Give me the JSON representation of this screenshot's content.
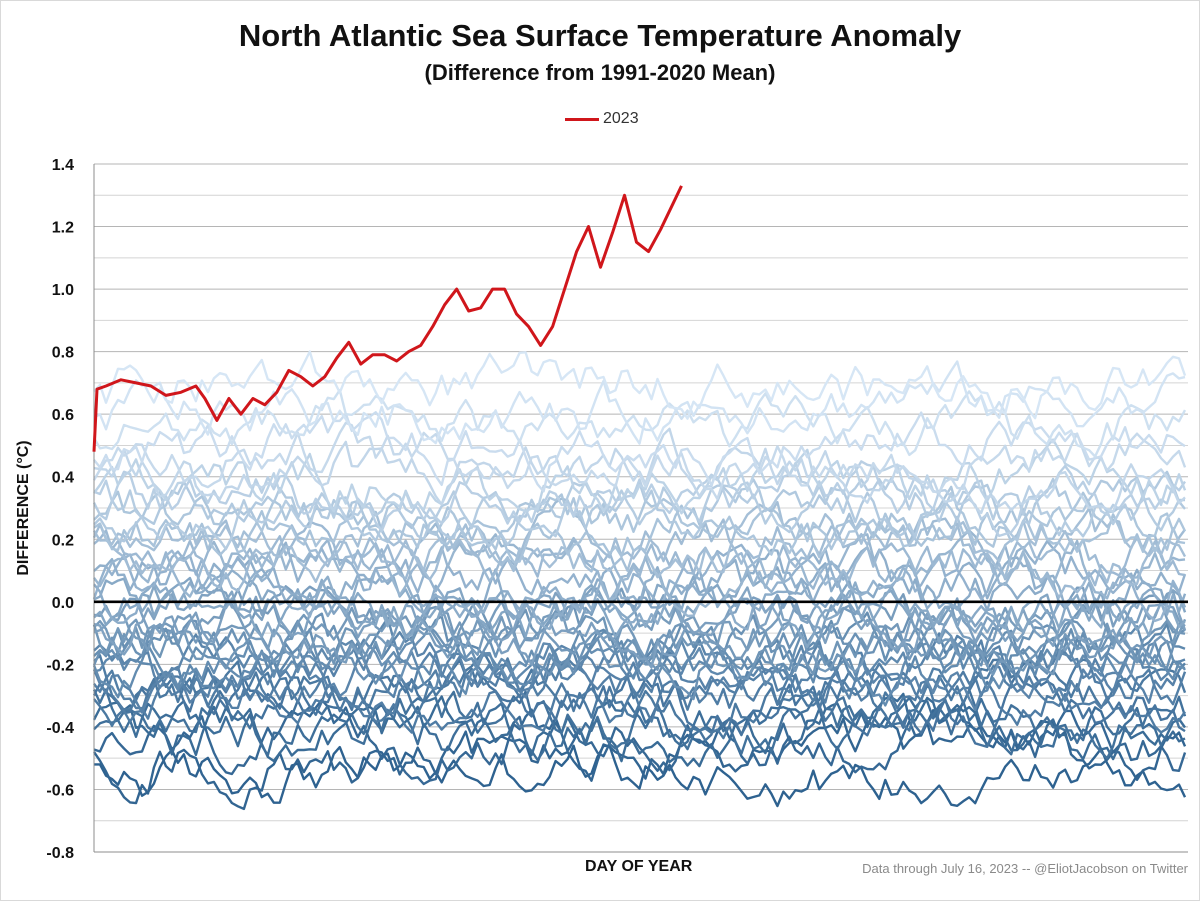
{
  "chart_data": {
    "type": "line",
    "title": "North Atlantic Sea Surface Temperature Anomaly",
    "subtitle": "(Difference from 1991-2020 Mean)",
    "xlabel": "DAY OF YEAR",
    "ylabel": "DIFFERENCE (°C)",
    "ylim": [
      -0.8,
      1.4
    ],
    "yticks": [
      "1.4",
      "1.2",
      "1.0",
      "0.8",
      "0.6",
      "0.4",
      "0.2",
      "0.0",
      "-0.2",
      "-0.4",
      "-0.6",
      "-0.8"
    ],
    "ytick_values": [
      1.4,
      1.2,
      1.0,
      0.8,
      0.6,
      0.4,
      0.2,
      0.0,
      -0.2,
      -0.4,
      -0.6,
      -0.8
    ],
    "xlim": [
      1,
      366
    ],
    "grid": true,
    "zero_line": true,
    "legend": [
      {
        "name": "2023",
        "color": "#d0161b"
      }
    ],
    "legend_position": "top-center",
    "credit": "Data through July 16, 2023 -- @EliotJacobson on Twitter",
    "highlight_series": {
      "name": "2023",
      "color": "#d0161b",
      "days": [
        1,
        2,
        5,
        10,
        15,
        20,
        25,
        30,
        35,
        38,
        42,
        46,
        50,
        54,
        58,
        62,
        66,
        70,
        74,
        78,
        82,
        86,
        90,
        94,
        98,
        102,
        106,
        110,
        114,
        118,
        122,
        126,
        130,
        134,
        138,
        142,
        146,
        150,
        154,
        158,
        162,
        166,
        170,
        174,
        178,
        182,
        186,
        190,
        194,
        197
      ],
      "values": [
        0.48,
        0.68,
        0.69,
        0.71,
        0.7,
        0.69,
        0.66,
        0.67,
        0.69,
        0.65,
        0.58,
        0.65,
        0.6,
        0.65,
        0.63,
        0.67,
        0.74,
        0.72,
        0.69,
        0.72,
        0.78,
        0.83,
        0.76,
        0.79,
        0.79,
        0.77,
        0.8,
        0.82,
        0.88,
        0.95,
        1.0,
        0.93,
        0.94,
        1.0,
        1.0,
        0.92,
        0.88,
        0.82,
        0.88,
        1.0,
        1.12,
        1.2,
        1.07,
        1.18,
        1.3,
        1.15,
        1.12,
        1.19,
        1.27,
        1.33
      ]
    },
    "historical_series": {
      "count": 42,
      "description": "years prior to 2023",
      "color_range": [
        "#2e6290",
        "#d6e6f5"
      ],
      "baselines": [
        -0.56,
        -0.5,
        -0.45,
        -0.42,
        -0.39,
        -0.36,
        -0.33,
        -0.3,
        -0.28,
        -0.26,
        -0.24,
        -0.22,
        -0.2,
        -0.18,
        -0.16,
        -0.14,
        -0.12,
        -0.1,
        -0.08,
        -0.06,
        -0.04,
        -0.02,
        0.0,
        0.02,
        0.05,
        0.08,
        0.11,
        0.14,
        0.17,
        0.2,
        0.23,
        0.26,
        0.29,
        0.32,
        0.35,
        0.38,
        0.42,
        0.46,
        0.5,
        0.55,
        0.62,
        0.7
      ],
      "day_range": [
        1,
        366
      ]
    }
  }
}
